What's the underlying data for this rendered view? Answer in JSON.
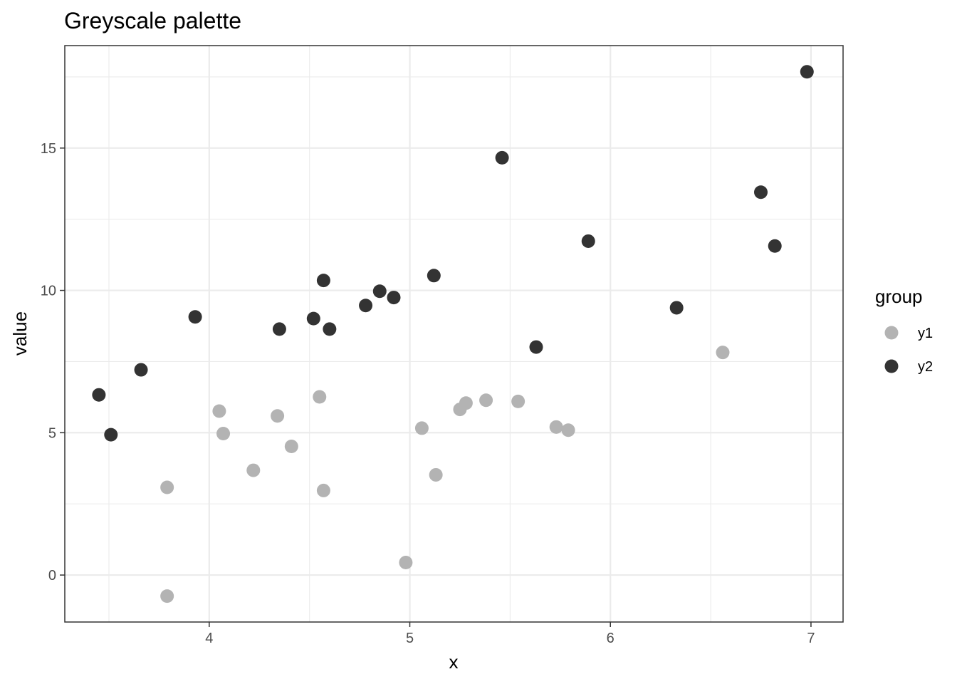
{
  "chart_data": {
    "type": "scatter",
    "title": "Greyscale palette",
    "xlabel": "x",
    "ylabel": "value",
    "xlim": [
      3.28,
      7.16
    ],
    "ylim": [
      -1.65,
      18.6
    ],
    "x_ticks": [
      4,
      5,
      6,
      7
    ],
    "y_ticks": [
      0,
      5,
      10,
      15
    ],
    "grid": true,
    "legend": {
      "title": "group",
      "position": "right"
    },
    "series": [
      {
        "name": "y1",
        "color": "#b3b3b3",
        "points": [
          [
            3.79,
            3.08
          ],
          [
            3.79,
            -0.74
          ],
          [
            4.05,
            5.76
          ],
          [
            4.07,
            4.97
          ],
          [
            4.22,
            3.68
          ],
          [
            4.34,
            5.59
          ],
          [
            4.41,
            4.52
          ],
          [
            4.55,
            6.26
          ],
          [
            4.57,
            2.97
          ],
          [
            4.98,
            0.44
          ],
          [
            5.06,
            5.16
          ],
          [
            5.13,
            3.52
          ],
          [
            5.25,
            5.82
          ],
          [
            5.28,
            6.04
          ],
          [
            5.38,
            6.14
          ],
          [
            5.54,
            6.1
          ],
          [
            5.73,
            5.2
          ],
          [
            5.79,
            5.09
          ],
          [
            6.56,
            7.82
          ]
        ]
      },
      {
        "name": "y2",
        "color": "#333333",
        "points": [
          [
            3.45,
            6.33
          ],
          [
            3.51,
            4.93
          ],
          [
            3.66,
            7.21
          ],
          [
            3.93,
            9.07
          ],
          [
            4.35,
            8.64
          ],
          [
            4.52,
            9.01
          ],
          [
            4.57,
            10.35
          ],
          [
            4.6,
            8.64
          ],
          [
            4.78,
            9.47
          ],
          [
            4.85,
            9.97
          ],
          [
            4.92,
            9.75
          ],
          [
            5.12,
            10.52
          ],
          [
            5.46,
            14.66
          ],
          [
            5.63,
            8.01
          ],
          [
            5.89,
            11.73
          ],
          [
            6.33,
            9.39
          ],
          [
            6.75,
            13.45
          ],
          [
            6.82,
            11.56
          ],
          [
            6.98,
            17.68
          ]
        ]
      }
    ]
  }
}
